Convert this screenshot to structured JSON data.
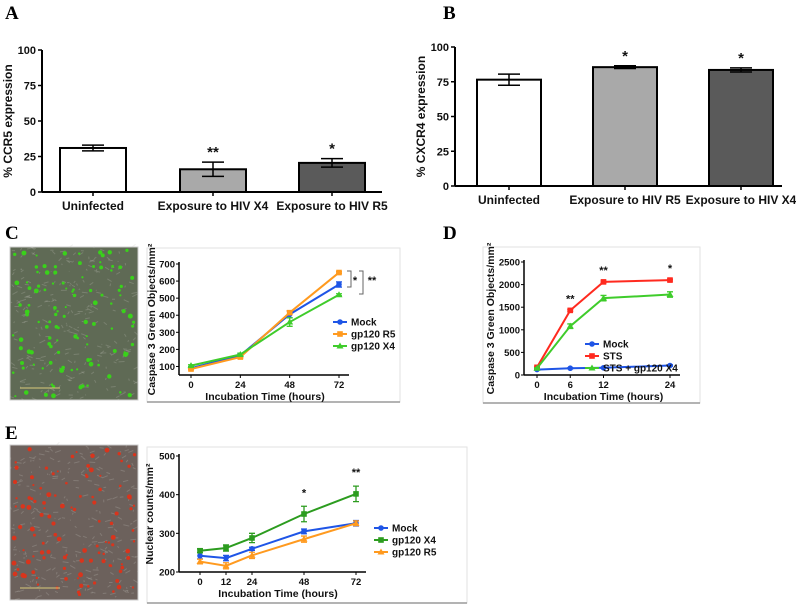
{
  "panels": {
    "A": "A",
    "B": "B",
    "C": "C",
    "D": "D",
    "E": "E"
  },
  "images": {
    "C": {
      "name": "caspase-3-green-micrograph",
      "color": "#5f6a55",
      "dot": "#39d21a"
    },
    "E": {
      "name": "nuclear-red-micrograph",
      "color": "#6c615c",
      "dot": "#d9341c"
    }
  },
  "chart_data": [
    {
      "id": "A",
      "type": "bar",
      "title": "",
      "xlabel": "",
      "ylabel": "% CCR5 expression",
      "ylim": [
        0,
        100
      ],
      "yticks": [
        0,
        25,
        50,
        75,
        100
      ],
      "categories": [
        "Uninfected",
        "Exposure to HIV X4",
        "Exposure to HIV R5"
      ],
      "values": [
        31,
        16,
        20.5
      ],
      "errors": [
        2,
        5,
        3
      ],
      "significance": [
        "",
        "**",
        "*"
      ],
      "colors": [
        "#ffffff",
        "#a9a9a9",
        "#5a5a5a"
      ]
    },
    {
      "id": "B",
      "type": "bar",
      "title": "",
      "xlabel": "",
      "ylabel": "% CXCR4 expression",
      "ylim": [
        0,
        100
      ],
      "yticks": [
        0,
        25,
        50,
        75,
        100
      ],
      "categories": [
        "Uninfected",
        "Exposure to HIV R5",
        "Exposure to HIV X4"
      ],
      "values": [
        76.5,
        85.5,
        83.5
      ],
      "errors": [
        4,
        1,
        1.5
      ],
      "significance": [
        "",
        "*",
        "*"
      ],
      "colors": [
        "#ffffff",
        "#a9a9a9",
        "#5a5a5a"
      ]
    },
    {
      "id": "C",
      "type": "line",
      "xlabel": "Incubation Time (hours)",
      "ylabel": "Caspase 3 Green Objects/mm²",
      "ylim": [
        50,
        700
      ],
      "yticks": [
        100,
        200,
        300,
        400,
        500,
        600,
        700
      ],
      "x": [
        0,
        24,
        48,
        72
      ],
      "xticks": [
        0,
        24,
        48,
        72
      ],
      "series": [
        {
          "name": "Mock",
          "color": "#1f55e6",
          "marker": "circle",
          "values": [
            90,
            165,
            405,
            580
          ],
          "errors": [
            5,
            8,
            20,
            15
          ]
        },
        {
          "name": "gp120 R5",
          "color": "#ff9a1f",
          "marker": "square",
          "values": [
            85,
            155,
            415,
            650
          ],
          "errors": [
            4,
            6,
            10,
            5
          ]
        },
        {
          "name": "gp120 X4",
          "color": "#3fcc2b",
          "marker": "triangle",
          "values": [
            105,
            170,
            360,
            520
          ],
          "errors": [
            5,
            8,
            25,
            6
          ]
        }
      ],
      "annotations": [
        "*",
        "**"
      ]
    },
    {
      "id": "D",
      "type": "line",
      "xlabel": "Incubation Time (hours)",
      "ylabel": "Caspase 3 Green Objects/mm²",
      "ylim": [
        0,
        2500
      ],
      "yticks": [
        0,
        500,
        1000,
        1500,
        2000,
        2500
      ],
      "x": [
        0,
        6,
        12,
        24
      ],
      "xticks": [
        0,
        6,
        12,
        24
      ],
      "series": [
        {
          "name": "Mock",
          "color": "#1f55e6",
          "marker": "circle",
          "values": [
            120,
            150,
            160,
            210
          ],
          "errors": [
            10,
            10,
            10,
            15
          ]
        },
        {
          "name": "STS",
          "color": "#ff2a1f",
          "marker": "square",
          "values": [
            170,
            1430,
            2060,
            2100
          ],
          "errors": [
            10,
            20,
            20,
            20
          ]
        },
        {
          "name": "STS + gp120 X4",
          "color": "#3fcc2b",
          "marker": "triangle",
          "values": [
            150,
            1080,
            1700,
            1780
          ],
          "errors": [
            10,
            50,
            60,
            60
          ]
        }
      ],
      "annotations": [
        "**",
        "**",
        "*"
      ]
    },
    {
      "id": "E",
      "type": "line",
      "xlabel": "Incubation Time (hours)",
      "ylabel": "Nuclear counts/mm²",
      "ylim": [
        200,
        500
      ],
      "yticks": [
        200,
        300,
        400,
        500
      ],
      "x": [
        0,
        12,
        24,
        48,
        72
      ],
      "xticks": [
        0,
        12,
        24,
        48,
        72
      ],
      "series": [
        {
          "name": "Mock",
          "color": "#1f55e6",
          "marker": "circle",
          "values": [
            242,
            236,
            260,
            305,
            326
          ],
          "errors": [
            8,
            7,
            4,
            6,
            7
          ]
        },
        {
          "name": "gp120 X4",
          "color": "#2c9c1f",
          "marker": "square",
          "values": [
            255,
            262,
            288,
            350,
            402
          ],
          "errors": [
            5,
            8,
            12,
            20,
            20
          ]
        },
        {
          "name": "gp120 R5",
          "color": "#ff9a1f",
          "marker": "triangle",
          "values": [
            227,
            216,
            243,
            285,
            326
          ],
          "errors": [
            6,
            8,
            8,
            8,
            6
          ]
        }
      ],
      "annotations": [
        "*",
        "**"
      ]
    }
  ]
}
